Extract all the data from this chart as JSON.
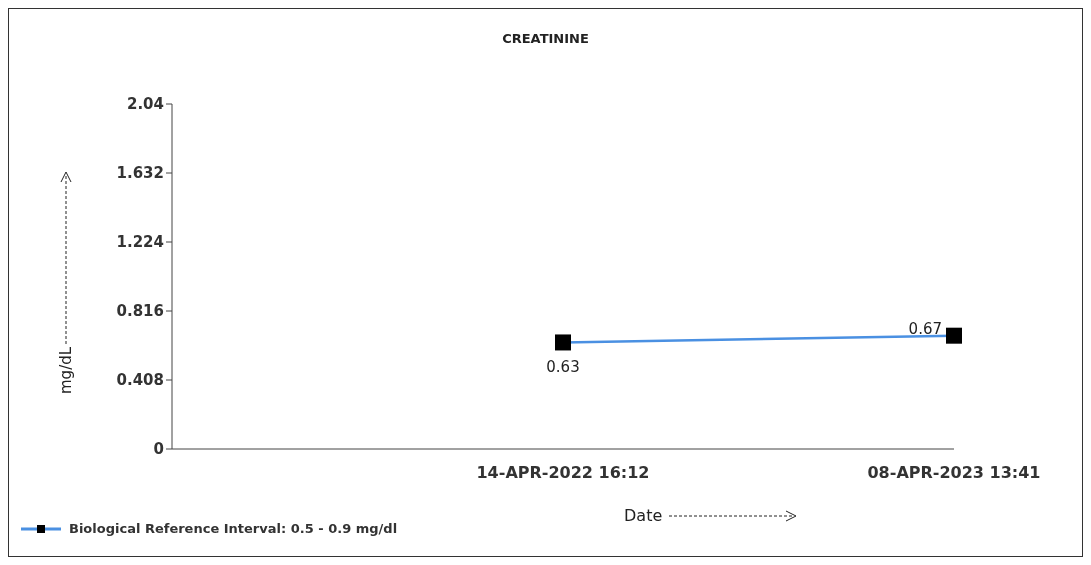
{
  "chart_data": {
    "type": "line",
    "title": "CREATININE",
    "xlabel": "Date",
    "ylabel": "mg/dL",
    "categories": [
      null,
      "14-APR-2022 16:12",
      "08-APR-2023 13:41"
    ],
    "series": [
      {
        "name": "Biological Reference Interval: 0.5 - 0.9 mg/dl",
        "color": "#4a90e2",
        "values": [
          null,
          0.63,
          0.67
        ]
      }
    ],
    "ylim": [
      0,
      2.04
    ],
    "yticks": [
      0,
      0.408,
      0.816,
      1.224,
      1.632,
      2.04
    ],
    "grid": false,
    "legend": "bottom left",
    "marker": "square",
    "line_style": "solid",
    "data_labels": true
  }
}
